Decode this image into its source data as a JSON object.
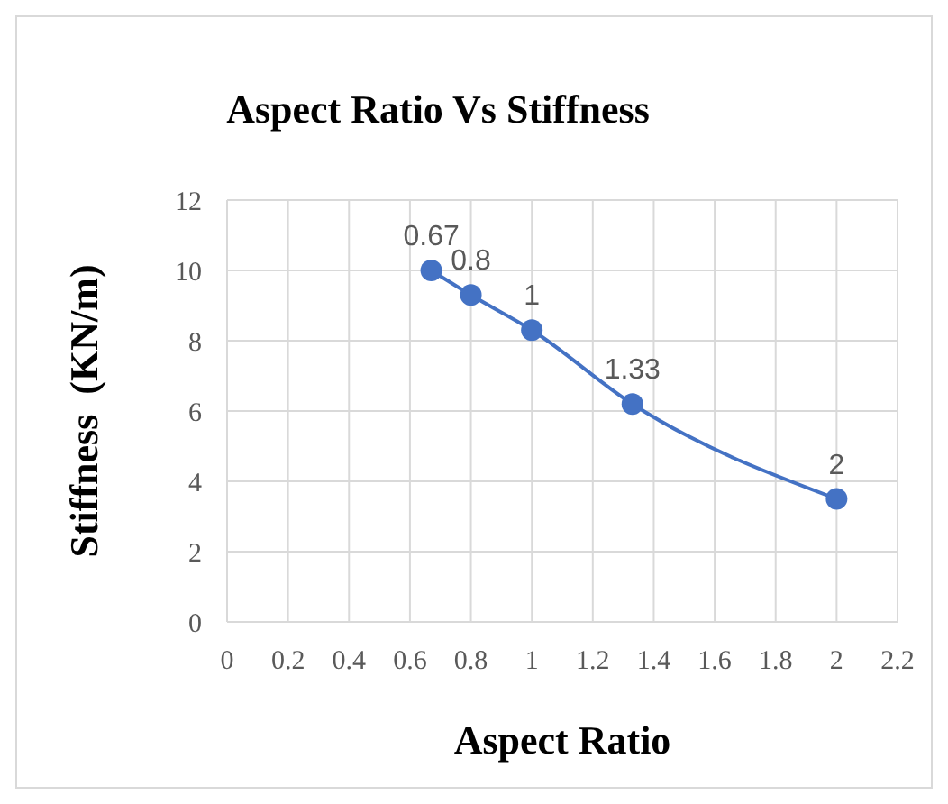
{
  "chart_data": {
    "type": "line",
    "title": "Aspect Ratio Vs Stiffness",
    "xlabel": "Aspect Ratio",
    "ylabel": "Stiffness  (KN/m)",
    "x": [
      0.67,
      0.8,
      1,
      1.33,
      2
    ],
    "series": [
      {
        "color": "#4472c4",
        "values": [
          10.0,
          9.3,
          8.3,
          6.2,
          3.5
        ]
      }
    ],
    "xlim": [
      0,
      2.2
    ],
    "xticks": [
      0,
      0.2,
      0.4,
      0.6,
      0.8,
      1,
      1.2,
      1.4,
      1.6,
      1.8,
      2,
      2.2
    ],
    "ylim": [
      0,
      12
    ],
    "yticks": [
      0,
      2,
      4,
      6,
      8,
      10,
      12
    ],
    "grid": true,
    "marker": "circle",
    "annotations": [
      {
        "text": "0.67",
        "x": 0.67,
        "y": 10.0
      },
      {
        "text": "0.8",
        "x": 0.8,
        "y": 9.3
      },
      {
        "text": "1",
        "x": 1,
        "y": 8.3
      },
      {
        "text": "1.33",
        "x": 1.33,
        "y": 6.2
      },
      {
        "text": "2",
        "x": 2,
        "y": 3.5
      }
    ]
  }
}
